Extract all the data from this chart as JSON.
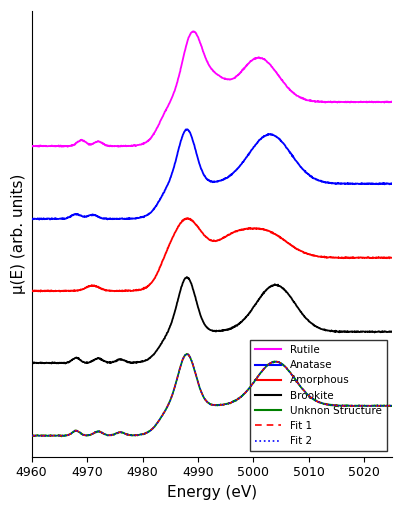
{
  "x_min": 4960,
  "x_max": 5025,
  "xlabel": "Energy (eV)",
  "ylabel": "μ(E) (arb. units)",
  "title": "",
  "legend_entries": [
    "Rutile",
    "Anatase",
    "Amorphous",
    "Brookite",
    "Unknon Structure",
    "Fit 1",
    "Fit 2"
  ],
  "legend_colors": [
    "magenta",
    "blue",
    "red",
    "black",
    "green",
    "red",
    "blue"
  ],
  "legend_styles": [
    "solid",
    "solid",
    "solid",
    "dashed",
    "dotted"
  ],
  "offsets": [
    2.2,
    1.65,
    1.1,
    0.55,
    0.0
  ],
  "background": "#ffffff"
}
